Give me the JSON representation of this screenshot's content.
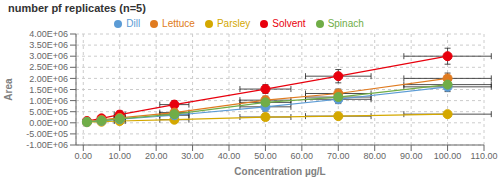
{
  "chart_data": {
    "type": "line",
    "title": "number pf replicates (n=5)",
    "xlabel": "Concentration µg/L",
    "ylabel": "Area",
    "x": [
      1,
      5,
      10,
      25,
      50,
      70,
      100
    ],
    "series": [
      {
        "name": "Solvent",
        "color": "#e8000d",
        "values": [
          80000,
          200000,
          370000,
          820000,
          1520000,
          2100000,
          3000000
        ],
        "y_err": [
          60000,
          110000,
          160000,
          180000,
          200000,
          300000,
          360000
        ],
        "x_err": [
          0.3,
          0.7,
          1.5,
          4,
          7,
          9,
          12
        ]
      },
      {
        "name": "Lettuce",
        "color": "#e07b20",
        "values": [
          50000,
          130000,
          220000,
          460000,
          1020000,
          1320000,
          2000000
        ],
        "y_err": [
          40000,
          80000,
          100000,
          140000,
          180000,
          200000,
          240000
        ],
        "x_err": [
          0.3,
          0.7,
          1.5,
          4,
          7,
          9,
          12
        ]
      },
      {
        "name": "Parsley",
        "color": "#d4a800",
        "values": [
          25000,
          50000,
          80000,
          140000,
          260000,
          300000,
          390000
        ],
        "y_err": [
          25000,
          45000,
          70000,
          90000,
          140000,
          90000,
          70000
        ],
        "x_err": [
          0.3,
          0.7,
          1.5,
          4,
          7,
          9,
          12
        ]
      },
      {
        "name": "Dill",
        "color": "#5b9bd5",
        "values": [
          35000,
          90000,
          160000,
          340000,
          720000,
          1060000,
          1620000
        ],
        "y_err": [
          35000,
          75000,
          115000,
          170000,
          190000,
          195000,
          215000
        ],
        "x_err": [
          0.3,
          0.7,
          1.5,
          4,
          7,
          9,
          12
        ]
      },
      {
        "name": "Spinach",
        "color": "#70ad47",
        "values": [
          40000,
          100000,
          180000,
          390000,
          920000,
          1160000,
          1720000
        ],
        "y_err": [
          35000,
          75000,
          105000,
          155000,
          175000,
          215000,
          225000
        ],
        "x_err": [
          0.3,
          0.7,
          1.5,
          4,
          7,
          9,
          12
        ]
      }
    ],
    "xlim": [
      -2,
      110
    ],
    "ylim": [
      -1000000,
      4000000
    ],
    "xticks": [
      {
        "value": 0,
        "label": "0.00"
      },
      {
        "value": 10,
        "label": "10.00"
      },
      {
        "value": 20,
        "label": "20.00"
      },
      {
        "value": 30,
        "label": "30.00"
      },
      {
        "value": 40,
        "label": "40.00"
      },
      {
        "value": 50,
        "label": "50.00"
      },
      {
        "value": 60,
        "label": "60.00"
      },
      {
        "value": 70,
        "label": "70.00"
      },
      {
        "value": 80,
        "label": "80.00"
      },
      {
        "value": 90,
        "label": "90.00"
      },
      {
        "value": 100,
        "label": "100.00"
      },
      {
        "value": 110,
        "label": "110.00"
      }
    ],
    "yticks": [
      {
        "value": -1000000,
        "label": "-1.00E+06"
      },
      {
        "value": -500000,
        "label": "-5.00E+05"
      },
      {
        "value": 0,
        "label": "0.00E+00"
      },
      {
        "value": 500000,
        "label": "5.00E+05"
      },
      {
        "value": 1000000,
        "label": "1.00E+06"
      },
      {
        "value": 1500000,
        "label": "1.50E+06"
      },
      {
        "value": 2000000,
        "label": "2.00E+06"
      },
      {
        "value": 2500000,
        "label": "2.50E+06"
      },
      {
        "value": 3000000,
        "label": "3.00E+06"
      },
      {
        "value": 3500000,
        "label": "3.50E+06"
      },
      {
        "value": 4000000,
        "label": "4.00E+06"
      }
    ],
    "grid": true,
    "legend": "top",
    "marker": "circle"
  }
}
